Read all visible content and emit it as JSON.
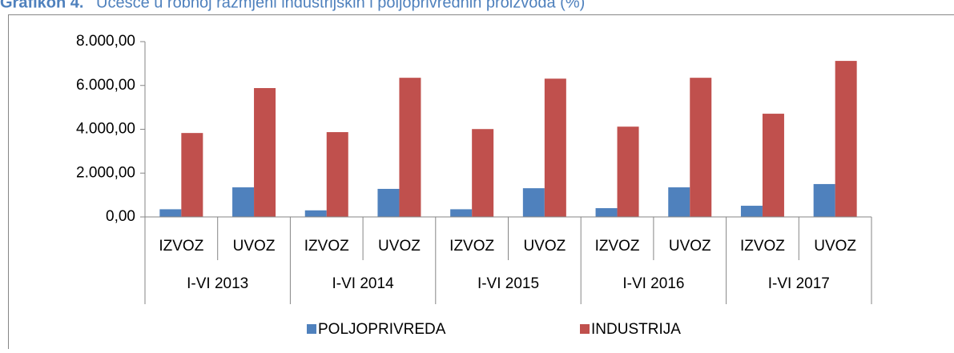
{
  "chart_data": {
    "type": "bar",
    "title_prefix": "Grafikon 4.",
    "title": "Učešće u robnoj razmjeni industrijskih i poljoprivrednih proizvoda (%)",
    "categories": [
      "IZVOZ",
      "UVOZ",
      "IZVOZ",
      "UVOZ",
      "IZVOZ",
      "UVOZ",
      "IZVOZ",
      "UVOZ",
      "IZVOZ",
      "UVOZ"
    ],
    "groups": [
      "I-VI 2013",
      "I-VI 2014",
      "I-VI 2015",
      "I-VI 2016",
      "I-VI 2017"
    ],
    "series": [
      {
        "name": "POLJOPRIVREDA",
        "color": "#4f81bd",
        "values": [
          350,
          1350,
          300,
          1280,
          350,
          1310,
          400,
          1350,
          510,
          1500
        ]
      },
      {
        "name": "INDUSTRIJA",
        "color": "#c0504d",
        "values": [
          3830,
          5880,
          3870,
          6350,
          4010,
          6310,
          4120,
          6350,
          4710,
          7120
        ]
      }
    ],
    "ylim": [
      0,
      8000
    ],
    "yticks": [
      {
        "value": 0,
        "label": "0,00"
      },
      {
        "value": 2000,
        "label": "2.000,00"
      },
      {
        "value": 4000,
        "label": "4.000,00"
      },
      {
        "value": 6000,
        "label": "6.000,00"
      },
      {
        "value": 8000,
        "label": "8.000,00"
      }
    ],
    "legend": "bottom"
  }
}
